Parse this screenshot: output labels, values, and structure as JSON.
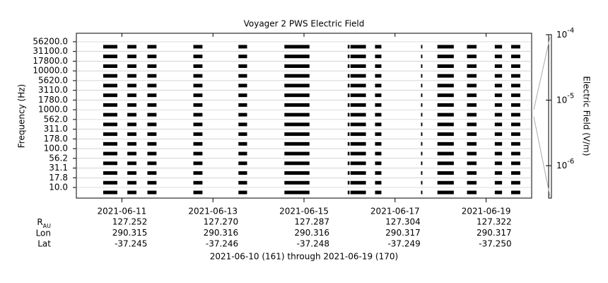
{
  "chart_data": {
    "type": "channel-time",
    "title": "Voyager 2 PWS Electric Field",
    "ylabel": "Frequency (Hz)",
    "yticks": [
      {
        "value": 56200,
        "label": "56200.0"
      },
      {
        "value": 31100,
        "label": "31100.0"
      },
      {
        "value": 17800,
        "label": "17800.0"
      },
      {
        "value": 10000,
        "label": "10000.0"
      },
      {
        "value": 5620,
        "label": "5620.0"
      },
      {
        "value": 3110,
        "label": "3110.0"
      },
      {
        "value": 1780,
        "label": "1780.0"
      },
      {
        "value": 1000,
        "label": "1000.0"
      },
      {
        "value": 562,
        "label": "562.0"
      },
      {
        "value": 311,
        "label": "311.0"
      },
      {
        "value": 178,
        "label": "178.0"
      },
      {
        "value": 100,
        "label": "100.0"
      },
      {
        "value": 56.2,
        "label": "56.2"
      },
      {
        "value": 31.1,
        "label": "31.1"
      },
      {
        "value": 17.8,
        "label": "17.8"
      },
      {
        "value": 10,
        "label": "10.0"
      }
    ],
    "xlim": [
      161,
      171
    ],
    "xticks": [
      {
        "value": 162,
        "label": "2021-06-11"
      },
      {
        "value": 164,
        "label": "2021-06-13"
      },
      {
        "value": 166,
        "label": "2021-06-15"
      },
      {
        "value": 168,
        "label": "2021-06-17"
      },
      {
        "value": 170,
        "label": "2021-06-19"
      }
    ],
    "segments": [
      [
        161.59,
        161.9
      ],
      [
        162.12,
        162.32
      ],
      [
        162.56,
        162.76
      ],
      [
        163.57,
        163.77
      ],
      [
        164.56,
        164.75
      ],
      [
        165.57,
        166.12
      ],
      [
        166.96,
        167.0
      ],
      [
        167.02,
        167.36
      ],
      [
        167.56,
        167.7
      ],
      [
        168.57,
        168.6
      ],
      [
        168.93,
        169.29
      ],
      [
        169.58,
        169.79
      ],
      [
        170.19,
        170.35
      ],
      [
        170.55,
        170.75
      ]
    ],
    "color": "#000000",
    "colorbar": {
      "label": "Electric Field (V/m)",
      "scale": "log",
      "lim": [
        3.2e-07,
        0.0001
      ],
      "ticks": [
        {
          "value": 0.0001,
          "label": "10",
          "exponent": "-4"
        },
        {
          "value": 1e-05,
          "label": "10",
          "exponent": "-5"
        },
        {
          "value": 1e-06,
          "label": "10",
          "exponent": "-6"
        }
      ]
    },
    "ephemeris": {
      "r_label": "R",
      "r_sub": "AU",
      "lon_label": "Lon",
      "lat_label": "Lat",
      "r": [
        "127.252",
        "127.270",
        "127.287",
        "127.304",
        "127.322"
      ],
      "lon": [
        "290.315",
        "290.316",
        "290.316",
        "290.317",
        "290.317"
      ],
      "lat": [
        "-37.245",
        "-37.246",
        "-37.248",
        "-37.249",
        "-37.250"
      ]
    },
    "footer": "2021-06-10 (161) through 2021-06-19 (170)"
  }
}
